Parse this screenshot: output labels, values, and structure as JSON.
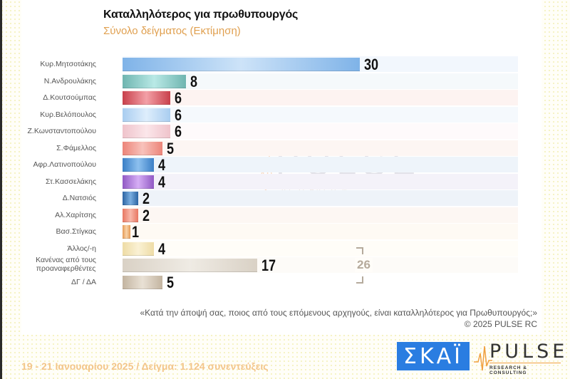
{
  "header": {
    "title": "Καταλληλότερος για πρωθυπουργός",
    "subtitle": "Σύνολο δείγματος   (Εκτίμηση)"
  },
  "chart_data": {
    "type": "bar",
    "orientation": "horizontal",
    "title": "Καταλληλότερος για πρωθυπουργός",
    "subtitle": "Σύνολο δείγματος (Εκτίμηση)",
    "xlabel": "",
    "ylabel": "",
    "grid": false,
    "categories": [
      "Κυρ.Μητσοτάκης",
      "Ν.Ανδρουλάκης",
      "Δ.Κουτσούμπας",
      "Κυρ.Βελόπουλος",
      "Ζ.Κωνσταντοπούλου",
      "Σ.Φάμελλος",
      "Αφρ.Λατινοπούλου",
      "Στ.Κασσελάκης",
      "Δ.Νατσιός",
      "Αλ.Χαρίτσης",
      "Βασ.Στίγκας",
      "Άλλος/-η",
      "Κανένας από τους προαναφερθέντες",
      "ΔΓ / ΔΑ"
    ],
    "values": [
      30,
      8,
      6,
      6,
      6,
      5,
      4,
      4,
      2,
      2,
      1,
      4,
      17,
      5
    ],
    "colors": [
      "#7fb3e8",
      "#7fc3bf",
      "#cc4b55",
      "#b8d6f2",
      "#f2cdd3",
      "#ee8a80",
      "#3d82c9",
      "#9a62c9",
      "#2f68a6",
      "#ea7c68",
      "#e8a462",
      "#f0e2b0",
      "#ddd5c8",
      "#c8b9a6"
    ],
    "annotations": [
      {
        "text": "26",
        "bracket_rows": [
          "Άλλος/-η",
          "ΔΓ / ΔΑ"
        ],
        "meaning": "sum of last three rows"
      }
    ],
    "value_labels": [
      "30",
      "8",
      "6",
      "6",
      "6",
      "5",
      "4",
      "4",
      "2",
      "2",
      "1",
      "4",
      "17",
      "5"
    ]
  },
  "rows": [
    {
      "label": "Κυρ.Μητσοτάκης",
      "value": "30",
      "n": 30,
      "color": "#7fb3e8",
      "hl": "#cde3f8",
      "bg": "#f2f7fd"
    },
    {
      "label": "Ν.Ανδρουλάκης",
      "value": "8",
      "n": 8,
      "color": "#6fb5b0",
      "hl": "#b9e9e6",
      "bg": "#f5f9fb"
    },
    {
      "label": "Δ.Κουτσούμπας",
      "value": "6",
      "n": 6,
      "color": "#c8404b",
      "hl": "#f3a0a7",
      "bg": "#fdf3f1"
    },
    {
      "label": "Κυρ.Βελόπουλος",
      "value": "6",
      "n": 6,
      "color": "#a9cdf0",
      "hl": "#deeefc",
      "bg": "#f5f9fd"
    },
    {
      "label": "Ζ.Κωνσταντοπούλου",
      "value": "6",
      "n": 6,
      "color": "#efc3cb",
      "hl": "#fbe6ea",
      "bg": "#fefafb"
    },
    {
      "label": "Σ.Φάμελλος",
      "value": "5",
      "n": 5,
      "color": "#ec8478",
      "hl": "#f8c2bb",
      "bg": "#fdf6f3"
    },
    {
      "label": "Αφρ.Λατινοπούλου",
      "value": "4",
      "n": 4,
      "color": "#3a7fc6",
      "hl": "#8dc0ef",
      "bg": "#eef4fa"
    },
    {
      "label": "Στ.Κασσελάκης",
      "value": "4",
      "n": 4,
      "color": "#9159c4",
      "hl": "#d6aef5",
      "bg": "#f4f2f9"
    },
    {
      "label": "Δ.Νατσιός",
      "value": "2",
      "n": 2,
      "color": "#2c64a3",
      "hl": "#7aaee0",
      "bg": "#eef3f9"
    },
    {
      "label": "Αλ.Χαρίτσης",
      "value": "2",
      "n": 2,
      "color": "#e87762",
      "hl": "#f8b8aa",
      "bg": "#fdf7f3"
    },
    {
      "label": "Βασ.Στίγκας",
      "value": "1",
      "n": 1,
      "color": "#e49a55",
      "hl": "#f9d2a8",
      "bg": "#fefaf4"
    },
    {
      "label": "Άλλος/-η",
      "value": "4",
      "n": 4,
      "color": "#eedca5",
      "hl": "#faf1d4",
      "bg": "#fffdf8"
    },
    {
      "label": "Κανένας από τους\nπροαναφερθέντες",
      "value": "17",
      "n": 17,
      "color": "#d9d1c5",
      "hl": "#efebe4",
      "bg": "#fdfbf8"
    },
    {
      "label": "ΔΓ / ΔΑ",
      "value": "5",
      "n": 5,
      "color": "#c3b4a0",
      "hl": "#e9e1d5",
      "bg": "#ffffff"
    }
  ],
  "bracket": {
    "value": "26"
  },
  "watermark": {
    "brand": "PULSE",
    "tagline": "RESEARCH & CONSULTING"
  },
  "footer": {
    "question": "«Κατά την άποψή σας, ποιος από τους επόμενους αρχηγούς, είναι καταλληλότερος για Πρωθυπουργός;»",
    "copyright": "©  2025  PULSE RC",
    "info": "19 - 21 Ιανουαρίου 2025  /  Δείγμα:  1.124 συνεντεύξεις"
  },
  "logos": {
    "skai": "ΣΚΑΪ",
    "pulse": "PULSE",
    "pulse_tagline": "RESEARCH & CONSULTING"
  }
}
